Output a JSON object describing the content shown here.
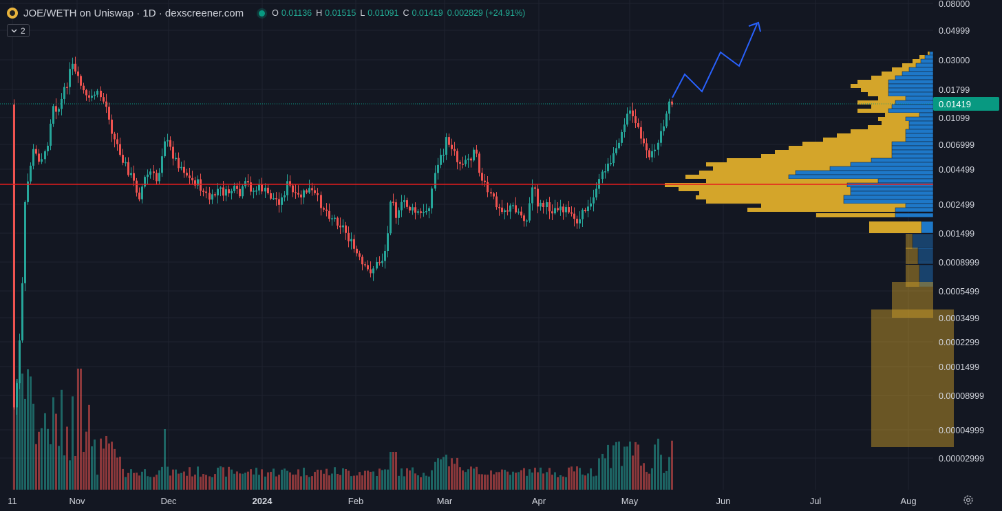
{
  "header": {
    "title": "JOE/WETH on Uniswap · 1D · dexscreener.com",
    "ohlc": {
      "o_label": "O",
      "o": "0.01136",
      "h_label": "H",
      "h": "0.01515",
      "l_label": "L",
      "l": "0.01091",
      "c_label": "C",
      "c": "0.01419",
      "change": "0.002829 (+24.91%)"
    },
    "indicator_count": "2"
  },
  "current_price": "0.01419",
  "colors": {
    "background": "#131722",
    "up": "#26a69a",
    "down": "#ef5350",
    "accent": "#089981",
    "hline": "#e51d1d",
    "forecast": "#2962ff",
    "vp_up": "#1e78c8",
    "vp_down": "#d4a52a"
  },
  "chart_data": {
    "type": "candlestick",
    "y_scale": "log",
    "y_ticks": [
      "0.08000",
      "0.04999",
      "0.03000",
      "0.01799",
      "0.01099",
      "0.006999",
      "0.004499",
      "0.002499",
      "0.001499",
      "0.0008999",
      "0.0005499",
      "0.0003499",
      "0.0002299",
      "0.0001499",
      "0.00008999",
      "0.00004999",
      "0.00002999"
    ],
    "x_ticks": [
      "11",
      "Nov",
      "Dec",
      "2024",
      "Feb",
      "Mar",
      "Apr",
      "May",
      "Jun",
      "Jul",
      "Aug"
    ],
    "horizontal_line": 0.0036,
    "last_close": 0.01419,
    "forecast_path": [
      0.0145,
      0.021,
      0.016,
      0.031,
      0.025,
      0.052
    ],
    "volume_profile": "visible",
    "volume": "visible"
  },
  "icons": {
    "settings": "gear-icon",
    "chevron": "chevron-down-icon",
    "logo": "token-logo-icon"
  }
}
